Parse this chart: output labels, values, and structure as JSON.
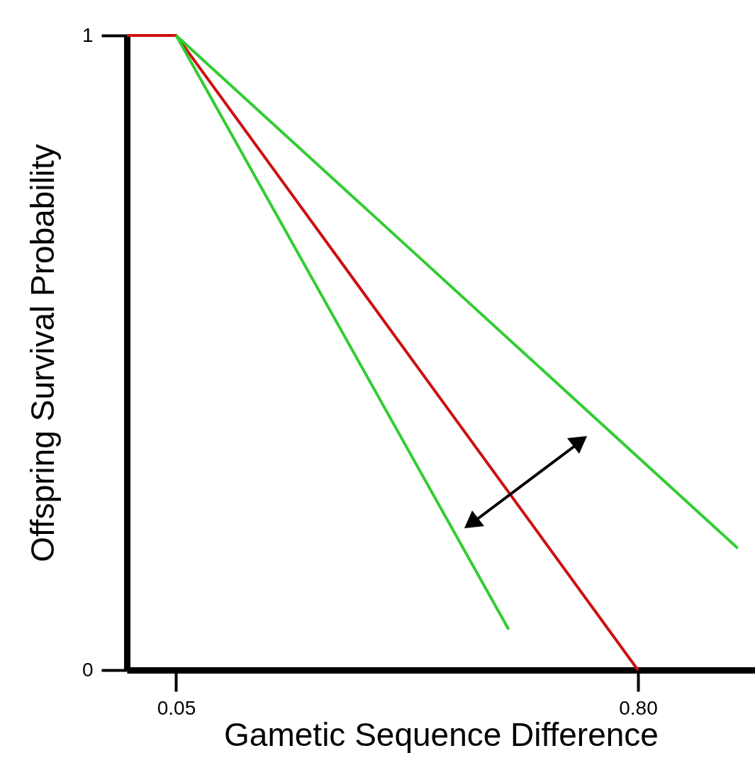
{
  "chart_data": {
    "type": "line",
    "xlabel": "Gametic Sequence Difference",
    "ylabel": "Offspring Survival Probability",
    "xlim": [
      -0.03,
      0.99
    ],
    "ylim": [
      0,
      1
    ],
    "xticks": [
      {
        "value": 0.05,
        "label": "0.05"
      },
      {
        "value": 0.8,
        "label": "0.80"
      }
    ],
    "yticks": [
      0,
      1
    ],
    "grid": false,
    "marker": "none",
    "line_style": "solid",
    "series": [
      {
        "color": "#cc1111",
        "x": [
          -0.03,
          0.05,
          0.8
        ],
        "values": [
          1,
          1,
          0
        ]
      },
      {
        "color": "#33cc33",
        "x": [
          0.05,
          0.59
        ],
        "values": [
          1,
          0.064
        ]
      },
      {
        "color": "#33cc33",
        "x": [
          0.05,
          0.962
        ],
        "values": [
          1,
          0.192
        ]
      }
    ]
  }
}
